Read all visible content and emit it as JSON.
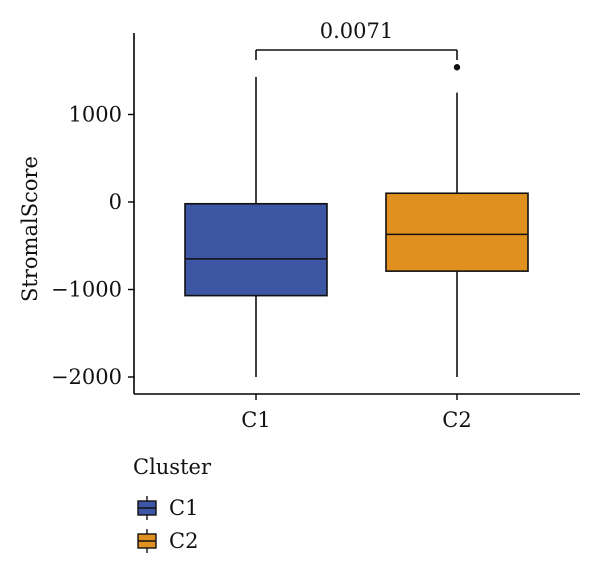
{
  "chart_data": {
    "type": "box",
    "title": "",
    "xlabel": "",
    "ylabel": "StromalScore",
    "ylim": [
      -2200,
      1870
    ],
    "yticks": [
      1000,
      0,
      -1000,
      -2000
    ],
    "ytick_labels": [
      "1000",
      "0",
      "−1000",
      "−2000"
    ],
    "categories": [
      "C1",
      "C2"
    ],
    "boxes": [
      {
        "name": "C1",
        "color": "#3D56A3",
        "whisker_low": -2000,
        "q1": -1070,
        "median": -650,
        "q3": -20,
        "whisker_high": 1430,
        "outliers": []
      },
      {
        "name": "C2",
        "color": "#E0901E",
        "whisker_low": -2000,
        "q1": -790,
        "median": -370,
        "q3": 100,
        "whisker_high": 1250,
        "outliers": [
          1540
        ]
      }
    ],
    "comparison": {
      "between": [
        "C1",
        "C2"
      ],
      "label": "0.0071"
    },
    "legend": {
      "title": "Cluster",
      "position": "bottom-left",
      "entries": [
        "C1",
        "C2"
      ]
    },
    "grid": false
  }
}
